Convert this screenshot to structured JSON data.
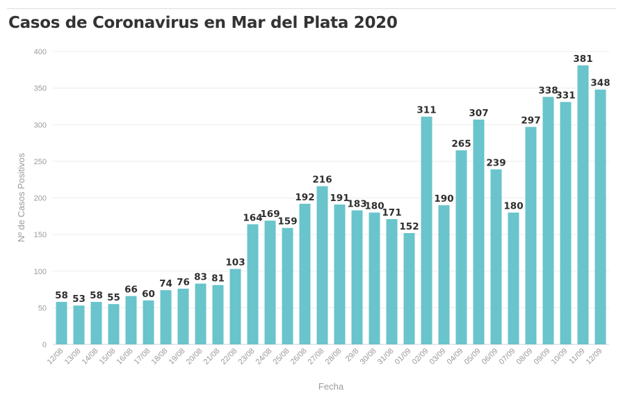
{
  "chart_data": {
    "type": "bar",
    "title": "Casos de Coronavirus en Mar del Plata 2020",
    "xlabel": "Fecha",
    "ylabel": "Nº de Casos Positivos",
    "ylim": [
      0,
      400
    ],
    "yticks": [
      "0",
      "50",
      "100",
      "150",
      "200",
      "250",
      "300",
      "350",
      "400"
    ],
    "grid": true,
    "bar_color": "#69c4cb",
    "categories": [
      "12/08",
      "13/08",
      "14/08",
      "15/08",
      "16/08",
      "17/08",
      "18/08",
      "19/08",
      "20/08",
      "21/08",
      "22/08",
      "23/08",
      "24/08",
      "25/08",
      "26/08",
      "27/08",
      "28/08",
      "29/8",
      "30/08",
      "31/08",
      "01/09",
      "02/09",
      "03/09",
      "04/09",
      "05/09",
      "06/09",
      "07/09",
      "08/09",
      "09/09",
      "10/09",
      "11/09",
      "12/09"
    ],
    "values": [
      58,
      53,
      58,
      55,
      66,
      60,
      74,
      76,
      83,
      81,
      103,
      164,
      169,
      159,
      192,
      216,
      191,
      183,
      180,
      171,
      152,
      311,
      190,
      265,
      307,
      239,
      180,
      297,
      338,
      331,
      381,
      348
    ]
  }
}
